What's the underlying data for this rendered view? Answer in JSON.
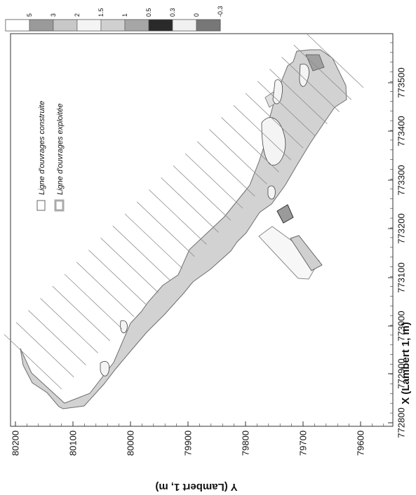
{
  "axes": {
    "x_title": "X (Lambert 1, m)",
    "y_title": "Y (Lambert 1, m)",
    "x_ticks": [
      "772800",
      "772900",
      "773000",
      "773100",
      "773200",
      "773300",
      "773400",
      "773500"
    ],
    "y_ticks": [
      "80200",
      "80100",
      "80000",
      "79900",
      "79800",
      "79700",
      "79600"
    ]
  },
  "color_scale": {
    "labels": [
      "5",
      "3",
      "2",
      "1.5",
      "1",
      "0.5",
      "0.3",
      "0",
      "-0.3"
    ],
    "colors": [
      "#ffffff",
      "#9a9a9a",
      "#c8c8c8",
      "#f4f4f4",
      "#d0d0d0",
      "#a6a6a6",
      "#2a2a2a",
      "#f0f0f0",
      "#777777"
    ]
  },
  "key": {
    "built_label": "Ligne d'ouvrages construite",
    "exploited_label": "Ligne d'ouvrages exploitée"
  }
}
